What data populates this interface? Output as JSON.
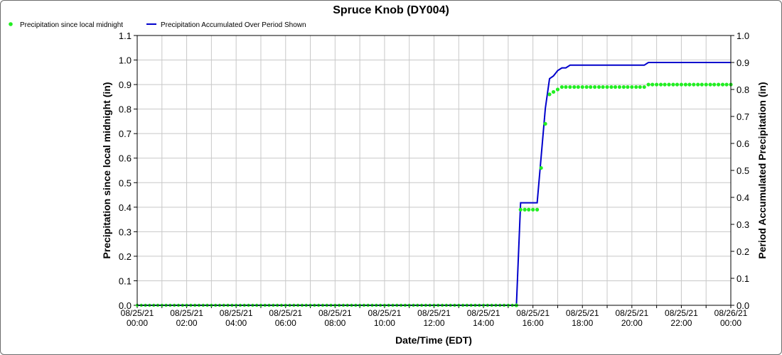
{
  "chart_data": {
    "type": "line",
    "title": "Spruce Knob (DY004)",
    "xlabel": "Date/Time (EDT)",
    "ylabel_left": "Precipitation since local midnight (in)",
    "ylabel_right": "Period Accumulated Precipitation (in)",
    "ylim_left": [
      0,
      1.1
    ],
    "ylim_right": [
      0,
      1.0
    ],
    "yticks_left": [
      "0.0",
      "0.1",
      "0.2",
      "0.3",
      "0.4",
      "0.5",
      "0.6",
      "0.7",
      "0.8",
      "0.9",
      "1.0",
      "1.1"
    ],
    "yticks_right": [
      "0.0",
      "0.1",
      "0.2",
      "0.3",
      "0.4",
      "0.5",
      "0.6",
      "0.7",
      "0.8",
      "0.9",
      "1.0"
    ],
    "xlim_hours": [
      0,
      24
    ],
    "xticks": [
      {
        "date": "08/25/21",
        "time": "00:00"
      },
      {
        "date": "08/25/21",
        "time": "02:00"
      },
      {
        "date": "08/25/21",
        "time": "04:00"
      },
      {
        "date": "08/25/21",
        "time": "06:00"
      },
      {
        "date": "08/25/21",
        "time": "08:00"
      },
      {
        "date": "08/25/21",
        "time": "10:00"
      },
      {
        "date": "08/25/21",
        "time": "12:00"
      },
      {
        "date": "08/25/21",
        "time": "14:00"
      },
      {
        "date": "08/25/21",
        "time": "16:00"
      },
      {
        "date": "08/25/21",
        "time": "18:00"
      },
      {
        "date": "08/25/21",
        "time": "20:00"
      },
      {
        "date": "08/25/21",
        "time": "22:00"
      },
      {
        "date": "08/26/21",
        "time": "00:00"
      }
    ],
    "grid": true,
    "legend_position": "top-left",
    "series": [
      {
        "name": "Precipitation since local midnight",
        "kind": "scatter",
        "axis": "left",
        "color": "#22ee22",
        "points": [
          [
            15.33,
            0.0
          ],
          [
            15.5,
            0.39
          ],
          [
            15.67,
            0.39
          ],
          [
            15.83,
            0.39
          ],
          [
            16.0,
            0.39
          ],
          [
            16.17,
            0.39
          ],
          [
            16.33,
            0.56
          ],
          [
            16.5,
            0.74
          ],
          [
            16.67,
            0.86
          ],
          [
            16.83,
            0.87
          ],
          [
            17.0,
            0.88
          ],
          [
            17.17,
            0.89
          ],
          [
            17.33,
            0.89
          ],
          [
            17.5,
            0.89
          ],
          [
            17.67,
            0.89
          ],
          [
            17.83,
            0.89
          ],
          [
            18.0,
            0.89
          ],
          [
            18.17,
            0.89
          ],
          [
            18.33,
            0.89
          ],
          [
            18.5,
            0.89
          ],
          [
            18.67,
            0.89
          ],
          [
            18.83,
            0.89
          ],
          [
            19.0,
            0.89
          ],
          [
            19.17,
            0.89
          ],
          [
            19.33,
            0.89
          ],
          [
            19.5,
            0.89
          ],
          [
            19.67,
            0.89
          ],
          [
            19.83,
            0.89
          ],
          [
            20.0,
            0.89
          ],
          [
            20.17,
            0.89
          ],
          [
            20.33,
            0.89
          ],
          [
            20.5,
            0.89
          ],
          [
            20.67,
            0.9
          ],
          [
            20.83,
            0.9
          ],
          [
            21.0,
            0.9
          ],
          [
            21.17,
            0.9
          ],
          [
            21.33,
            0.9
          ],
          [
            21.5,
            0.9
          ],
          [
            21.67,
            0.9
          ],
          [
            21.83,
            0.9
          ],
          [
            22.0,
            0.9
          ],
          [
            22.17,
            0.9
          ],
          [
            22.33,
            0.9
          ],
          [
            22.5,
            0.9
          ],
          [
            22.67,
            0.9
          ],
          [
            22.83,
            0.9
          ],
          [
            23.0,
            0.9
          ],
          [
            23.17,
            0.9
          ],
          [
            23.33,
            0.9
          ],
          [
            23.5,
            0.9
          ],
          [
            23.67,
            0.9
          ],
          [
            23.83,
            0.9
          ],
          [
            24.0,
            0.9
          ]
        ]
      },
      {
        "name": "Precipitation Accumulated Over Period Shown",
        "kind": "line",
        "axis": "right",
        "color": "#0000cc",
        "points": [
          [
            0,
            0.0
          ],
          [
            15.33,
            0.0
          ],
          [
            15.5,
            0.38
          ],
          [
            16.17,
            0.38
          ],
          [
            16.5,
            0.73
          ],
          [
            16.67,
            0.84
          ],
          [
            16.83,
            0.85
          ],
          [
            17.0,
            0.87
          ],
          [
            17.17,
            0.88
          ],
          [
            17.33,
            0.88
          ],
          [
            17.5,
            0.89
          ],
          [
            20.5,
            0.89
          ],
          [
            20.67,
            0.9
          ],
          [
            24.0,
            0.9
          ]
        ]
      }
    ]
  }
}
